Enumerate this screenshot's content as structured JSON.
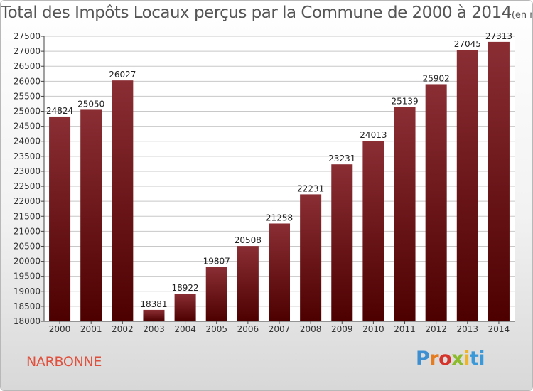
{
  "chart_data": {
    "type": "bar",
    "title": "Total des Impôts Locaux perçus par la Commune de 2000 à 2014",
    "subtitle": "(en milliers d'€)",
    "categories": [
      "2000",
      "2001",
      "2002",
      "2003",
      "2004",
      "2005",
      "2006",
      "2007",
      "2008",
      "2009",
      "2010",
      "2011",
      "2012",
      "2013",
      "2014"
    ],
    "values": [
      24824,
      25050,
      26027,
      18381,
      18922,
      19807,
      20508,
      21258,
      22231,
      23231,
      24013,
      25139,
      25902,
      27045,
      27313
    ],
    "ylim": [
      18000,
      27500
    ],
    "yticks": [
      18000,
      18500,
      19000,
      19500,
      20000,
      20500,
      21000,
      21500,
      22000,
      22500,
      23000,
      23500,
      24000,
      24500,
      25000,
      25500,
      26000,
      26500,
      27000,
      27500
    ],
    "grid": true,
    "xlabel": "",
    "ylabel": "",
    "bar_color_top": "#8a2e34",
    "bar_color_bottom": "#4d0000"
  },
  "commune": "NARBONNE",
  "logo": {
    "text": "Proxiti",
    "colors": [
      "#3d8fd1",
      "#e57c1f",
      "#d6342b",
      "#8cbc2b",
      "#f0b428",
      "#3a9ad9"
    ]
  }
}
